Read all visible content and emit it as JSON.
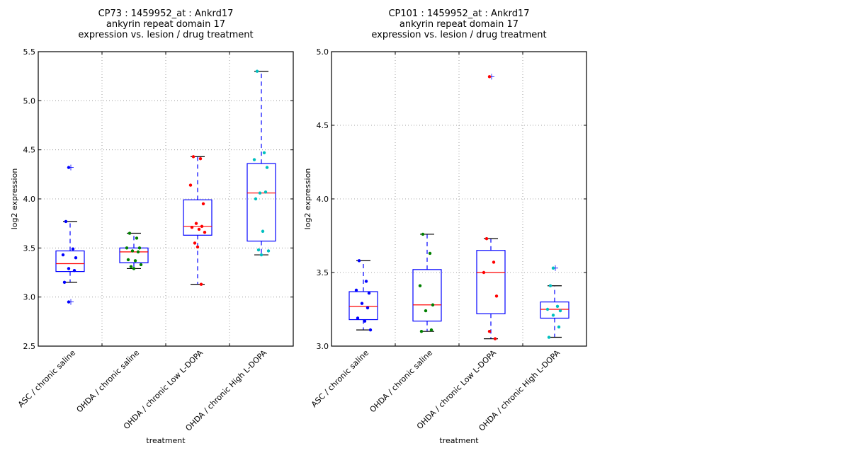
{
  "chart_data": [
    {
      "type": "box",
      "title_lines": [
        "CP73 : 1459952_at : Ankrd17",
        "ankyrin repeat domain 17",
        "expression vs. lesion / drug treatment"
      ],
      "xlabel": "treatment",
      "ylabel": "log2 expression",
      "ylim": [
        2.5,
        5.5
      ],
      "yticks": [
        "2.5",
        "3.0",
        "3.5",
        "4.0",
        "4.5",
        "5.0",
        "5.5"
      ],
      "grid": true,
      "categories": [
        "ASC / chronic saline",
        "OHDA / chronic saline",
        "OHDA / chronic Low L-DOPA",
        "OHDA / chronic High L-DOPA"
      ],
      "groups": [
        {
          "color": "#0000ff",
          "q1": 3.26,
          "median": 3.34,
          "q3": 3.47,
          "whisker_low": 3.15,
          "whisker_high": 3.77,
          "outliers": [
            4.32,
            2.95
          ],
          "points": [
            3.77,
            3.49,
            3.43,
            3.4,
            3.29,
            3.27,
            3.15,
            4.32,
            2.95
          ]
        },
        {
          "color": "#008000",
          "q1": 3.35,
          "median": 3.46,
          "q3": 3.5,
          "whisker_low": 3.29,
          "whisker_high": 3.65,
          "outliers": [],
          "points": [
            3.65,
            3.6,
            3.5,
            3.5,
            3.47,
            3.46,
            3.38,
            3.37,
            3.33,
            3.31,
            3.29
          ]
        },
        {
          "color": "#ff0000",
          "q1": 3.63,
          "median": 3.72,
          "q3": 3.99,
          "whisker_low": 3.13,
          "whisker_high": 4.43,
          "outliers": [],
          "points": [
            4.43,
            4.41,
            4.14,
            3.95,
            3.75,
            3.72,
            3.71,
            3.69,
            3.66,
            3.55,
            3.51,
            3.13
          ]
        },
        {
          "color": "#00bfbf",
          "q1": 3.57,
          "median": 4.06,
          "q3": 4.36,
          "whisker_low": 3.43,
          "whisker_high": 5.3,
          "outliers": [],
          "points": [
            5.3,
            4.47,
            4.4,
            4.32,
            4.06,
            4.07,
            4.0,
            3.67,
            3.47,
            3.48,
            3.43
          ]
        }
      ]
    },
    {
      "type": "box",
      "title_lines": [
        "CP101 : 1459952_at : Ankrd17",
        "ankyrin repeat domain 17",
        "expression vs. lesion / drug treatment"
      ],
      "xlabel": "treatment",
      "ylabel": "log2 expression",
      "ylim": [
        3.0,
        5.0
      ],
      "yticks": [
        "3.0",
        "3.5",
        "4.0",
        "4.5",
        "5.0"
      ],
      "grid": true,
      "categories": [
        "ASC / chronic saline",
        "OHDA / chronic saline",
        "OHDA / chronic Low L-DOPA",
        "OHDA / chronic High L-DOPA"
      ],
      "groups": [
        {
          "color": "#0000ff",
          "q1": 3.18,
          "median": 3.27,
          "q3": 3.37,
          "whisker_low": 3.11,
          "whisker_high": 3.58,
          "outliers": [],
          "points": [
            3.58,
            3.44,
            3.38,
            3.36,
            3.29,
            3.26,
            3.19,
            3.17,
            3.11
          ]
        },
        {
          "color": "#008000",
          "q1": 3.17,
          "median": 3.28,
          "q3": 3.52,
          "whisker_low": 3.1,
          "whisker_high": 3.76,
          "outliers": [],
          "points": [
            3.76,
            3.63,
            3.41,
            3.28,
            3.24,
            3.11,
            3.1
          ]
        },
        {
          "color": "#ff0000",
          "q1": 3.22,
          "median": 3.5,
          "q3": 3.65,
          "whisker_low": 3.05,
          "whisker_high": 3.73,
          "outliers": [
            4.83
          ],
          "points": [
            3.73,
            3.57,
            3.5,
            3.34,
            3.1,
            3.05,
            4.83
          ]
        },
        {
          "color": "#00bfbf",
          "q1": 3.19,
          "median": 3.25,
          "q3": 3.3,
          "whisker_low": 3.06,
          "whisker_high": 3.41,
          "outliers": [
            3.53
          ],
          "points": [
            3.41,
            3.27,
            3.25,
            3.24,
            3.21,
            3.13,
            3.06,
            3.53
          ]
        }
      ]
    }
  ]
}
